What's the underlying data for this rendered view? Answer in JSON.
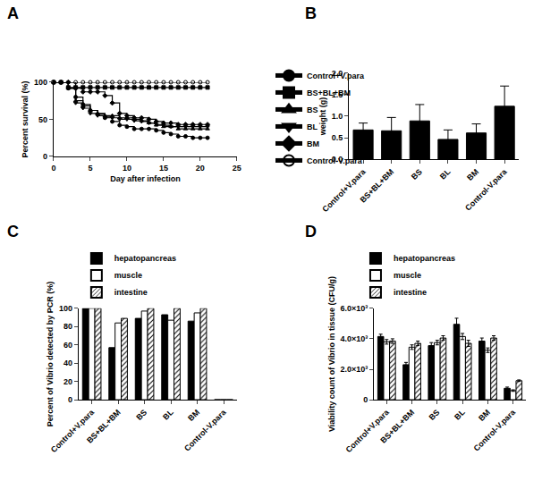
{
  "chart_data": [
    {
      "type": "line",
      "title": "A",
      "line_style": "step",
      "legend": "right",
      "x_label": "Day after infection",
      "y_label": "Percent survival (%)",
      "x": [
        0,
        1,
        2,
        3,
        4,
        5,
        6,
        7,
        8,
        9,
        10,
        11,
        12,
        13,
        14,
        15,
        16,
        17,
        18,
        19,
        20,
        21
      ],
      "xlim": [
        0,
        25
      ],
      "xticks": [
        0,
        5,
        10,
        15,
        20,
        25
      ],
      "ylim": [
        0,
        100
      ],
      "yticks": [
        0,
        50,
        100
      ],
      "series": [
        {
          "name": "Control+V.para",
          "color": "#000000",
          "marker": "circle",
          "values": [
            100,
            100,
            92,
            80,
            70,
            62,
            57,
            52,
            47,
            42,
            40,
            37,
            37,
            37,
            35,
            32,
            30,
            27,
            27,
            25,
            25,
            25
          ]
        },
        {
          "name": "BS+BL+BM",
          "color": "#000000",
          "marker": "square",
          "values": [
            100,
            100,
            93,
            93,
            93,
            93,
            93,
            93,
            93,
            93,
            93,
            93,
            93,
            93,
            93,
            93,
            93,
            93,
            93,
            93,
            93,
            93
          ]
        },
        {
          "name": "BS",
          "color": "#000000",
          "marker": "triangle-up",
          "values": [
            100,
            100,
            92,
            75,
            68,
            62,
            58,
            55,
            55,
            52,
            52,
            50,
            48,
            45,
            42,
            40,
            40,
            37,
            37,
            37,
            37,
            37
          ]
        },
        {
          "name": "BL",
          "color": "#000000",
          "marker": "triangle-down",
          "values": [
            100,
            100,
            92,
            72,
            65,
            58,
            55,
            53,
            52,
            50,
            50,
            48,
            47,
            45,
            43,
            42,
            40,
            40,
            40,
            40,
            40,
            40
          ]
        },
        {
          "name": "BM",
          "color": "#000000",
          "marker": "diamond",
          "values": [
            100,
            100,
            100,
            92,
            87,
            87,
            87,
            82,
            72,
            58,
            55,
            52,
            52,
            50,
            47,
            45,
            45,
            43,
            43,
            43,
            43,
            43
          ]
        },
        {
          "name": "Control-V.para",
          "color": "#000000",
          "marker": "circle-open",
          "values": [
            100,
            100,
            100,
            100,
            100,
            100,
            100,
            100,
            100,
            100,
            100,
            100,
            100,
            100,
            100,
            100,
            100,
            100,
            100,
            100,
            100,
            100
          ]
        }
      ]
    },
    {
      "type": "bar",
      "title": "B",
      "y_label": "weight (g)",
      "categories": [
        "Control+V.para",
        "BS+BL+BM",
        "BS",
        "BL",
        "BM",
        "Control-V.para"
      ],
      "values": [
        0.68,
        0.66,
        0.89,
        0.46,
        0.61,
        1.23
      ],
      "errors": [
        0.16,
        0.31,
        0.38,
        0.22,
        0.21,
        0.47
      ],
      "color": "#000000",
      "ylim": [
        0,
        2.0
      ],
      "yticks": [
        {
          "value": 0,
          "label": "0.0"
        },
        {
          "value": 0.5,
          "label": "0.5"
        },
        {
          "value": 1.0,
          "label": "1.0"
        },
        {
          "value": 1.5,
          "label": "1.5"
        },
        {
          "value": 2.0,
          "label": "2.0"
        }
      ]
    },
    {
      "type": "bar",
      "title": "C",
      "legend": "top",
      "y_label": "Percent of Vibrio detected by PCR (%)",
      "categories": [
        "Control+V.para",
        "BS+BL+BM",
        "BS",
        "BL",
        "BM",
        "Control-V.para"
      ],
      "ylim": [
        0,
        100
      ],
      "yticks": [
        0,
        20,
        40,
        60,
        80,
        100
      ],
      "series": [
        {
          "name": "hepatopancreas",
          "color": "#000000",
          "marker": "solid",
          "values": [
            100,
            57,
            89,
            93,
            86,
            0
          ]
        },
        {
          "name": "muscle",
          "color": "#000000",
          "marker": "open",
          "values": [
            100,
            84,
            97,
            87,
            95,
            0
          ]
        },
        {
          "name": "intestine",
          "color": "#000000",
          "marker": "hatched",
          "values": [
            100,
            89,
            100,
            100,
            100,
            0
          ]
        }
      ]
    },
    {
      "type": "bar",
      "title": "D",
      "legend": "top",
      "y_label": "Viability count of Vibrio in tissue (CFU/g)",
      "categories": [
        "Control+V.para",
        "BS+BL+BM",
        "BS",
        "BL",
        "BM",
        "Control-V.para"
      ],
      "ylim": [
        0,
        6000
      ],
      "yticks": [
        0,
        {
          "value": 2000,
          "label": "2.0×10³"
        },
        {
          "value": 4000,
          "label": "4.0×10³"
        },
        {
          "value": 6000,
          "label": "6.0×10³"
        }
      ],
      "series": [
        {
          "name": "hepatopancreas",
          "color": "#000000",
          "marker": "solid",
          "values": [
            4150,
            2300,
            3550,
            4950,
            3850,
            750
          ],
          "errors": [
            150,
            150,
            200,
            400,
            200,
            80
          ]
        },
        {
          "name": "muscle",
          "color": "#000000",
          "marker": "open",
          "values": [
            3800,
            3450,
            3750,
            4150,
            3250,
            600
          ],
          "errors": [
            150,
            150,
            150,
            200,
            150,
            50
          ]
        },
        {
          "name": "intestine",
          "color": "#000000",
          "marker": "hatched",
          "values": [
            3850,
            3700,
            4050,
            3700,
            4050,
            1250
          ],
          "errors": [
            150,
            150,
            150,
            200,
            150,
            50
          ]
        }
      ]
    }
  ]
}
